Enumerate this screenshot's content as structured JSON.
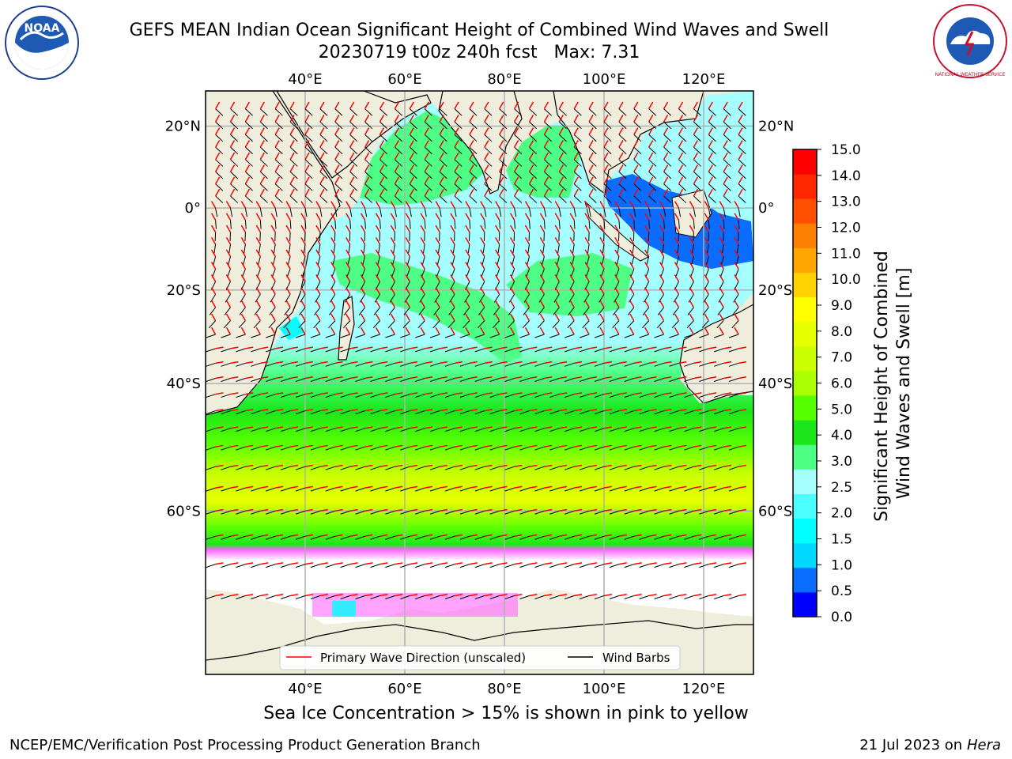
{
  "header": {
    "title_line1": "GEFS MEAN Indian Ocean Significant Height of Combined Wind Waves and Swell",
    "title_line2": "20230719 t00z 240h fcst   Max: 7.31"
  },
  "logos": {
    "left": "NOAA",
    "right": "NATIONAL WEATHER SERVICE"
  },
  "map": {
    "lon_ticks_top": [
      "40°E",
      "60°E",
      "80°E",
      "100°E",
      "120°E"
    ],
    "lon_ticks_bottom": [
      "40°E",
      "60°E",
      "80°E",
      "100°E",
      "120°E"
    ],
    "lat_ticks_left": [
      "20°N",
      "0°",
      "20°S",
      "40°S",
      "60°S"
    ],
    "lat_ticks_right": [
      "20°N",
      "0°",
      "20°S",
      "40°S",
      "60°S"
    ],
    "lon_values": [
      40,
      60,
      80,
      100,
      120
    ],
    "lat_values": [
      20,
      0,
      -20,
      -40,
      -60
    ],
    "lon_range": [
      20,
      130
    ],
    "lat_range": [
      -75,
      28
    ],
    "land_color": "#efeddc",
    "legend": {
      "wave_label": "Primary Wave Direction (unscaled)",
      "wind_label": "Wind Barbs",
      "wave_color": "#ff0000",
      "wind_color": "#000000"
    }
  },
  "colorbar": {
    "label_line1": "Significant Height of Combined",
    "label_line2": "Wind Waves and Swell [m]",
    "levels": [
      "0.0",
      "0.5",
      "1.0",
      "1.5",
      "2.0",
      "2.5",
      "3.0",
      "4.0",
      "5.0",
      "6.0",
      "7.0",
      "8.0",
      "9.0",
      "10.0",
      "11.0",
      "12.0",
      "13.0",
      "14.0",
      "15.0"
    ],
    "colors": [
      "#0000ff",
      "#0a6dff",
      "#00d8ff",
      "#00ffff",
      "#4cffff",
      "#a6ffff",
      "#4dff85",
      "#1be61b",
      "#58ff00",
      "#aaff00",
      "#ccff00",
      "#e6ff00",
      "#ffff00",
      "#ffd200",
      "#ffa600",
      "#ff8000",
      "#ff5000",
      "#ff2800",
      "#ff0000"
    ]
  },
  "footer": {
    "ice_note": "Sea Ice Concentration > 15% is shown in pink to yellow",
    "left": "NCEP/EMC/Verification Post Processing Product Generation Branch",
    "right_text": "21 Jul 2023 on ",
    "right_italic": "Hera"
  }
}
